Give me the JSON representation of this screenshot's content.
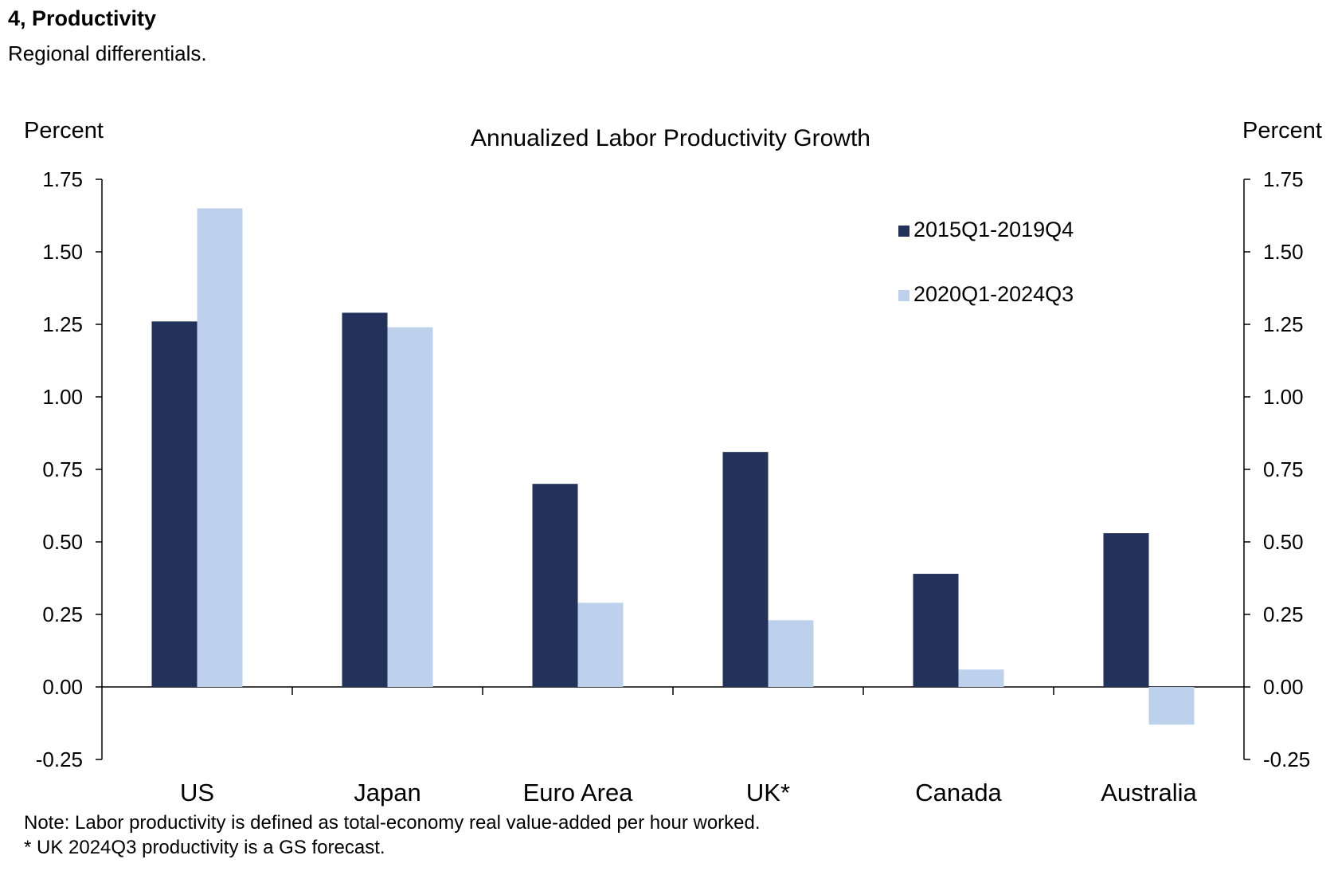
{
  "header": {
    "title": "4, Productivity",
    "subtitle": "Regional differentials."
  },
  "chart_data": {
    "type": "bar",
    "title": "Annualized Labor Productivity Growth",
    "ylabel_left": "Percent",
    "ylabel_right": "Percent",
    "ylim": [
      -0.25,
      1.75
    ],
    "yticks": [
      1.75,
      1.5,
      1.25,
      1.0,
      0.75,
      0.5,
      0.25,
      0.0,
      -0.25
    ],
    "ytick_labels": [
      "1.75",
      "1.50",
      "1.25",
      "1.00",
      "0.75",
      "0.50",
      "0.25",
      "0.00",
      "-0.25"
    ],
    "categories": [
      "US",
      "Japan",
      "Euro Area",
      "UK*",
      "Canada",
      "Australia"
    ],
    "series": [
      {
        "name": "2015Q1-2019Q4",
        "color": "#22325a",
        "values": [
          1.26,
          1.29,
          0.7,
          0.81,
          0.39,
          0.53
        ]
      },
      {
        "name": "2020Q1-2024Q3",
        "color": "#bdd1ec",
        "values": [
          1.65,
          1.24,
          0.29,
          0.23,
          0.06,
          -0.13
        ]
      }
    ],
    "legend_position": "top-right",
    "grid": false
  },
  "notes": [
    "Note: Labor productivity is defined as total-economy real value-added per hour worked.",
    "* UK 2024Q3 productivity is a GS forecast."
  ]
}
